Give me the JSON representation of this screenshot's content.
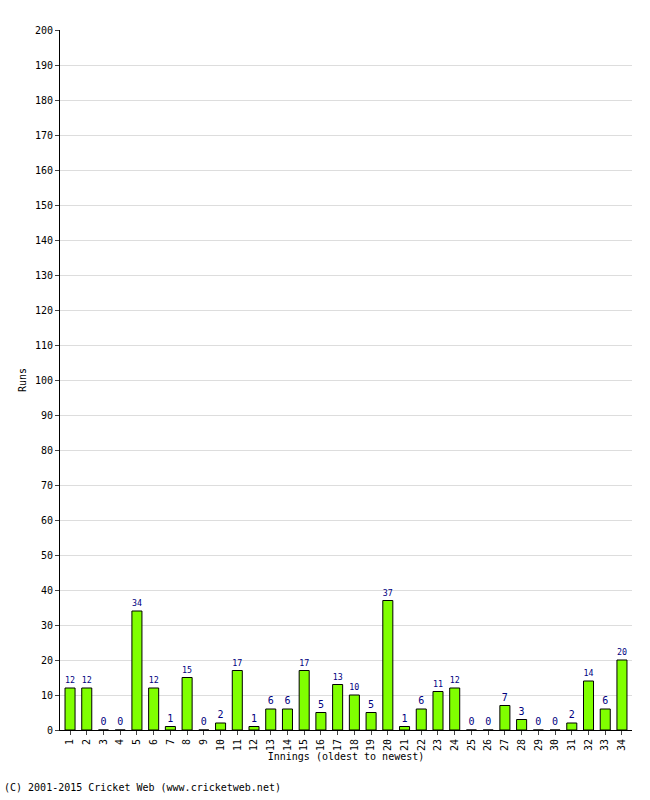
{
  "chart_data": {
    "type": "bar",
    "categories": [
      "1",
      "2",
      "3",
      "4",
      "5",
      "6",
      "7",
      "8",
      "9",
      "10",
      "11",
      "12",
      "13",
      "14",
      "15",
      "16",
      "17",
      "18",
      "19",
      "20",
      "21",
      "22",
      "23",
      "24",
      "25",
      "26",
      "27",
      "28",
      "29",
      "30",
      "31",
      "32",
      "33",
      "34"
    ],
    "values": [
      12,
      12,
      0,
      0,
      34,
      12,
      1,
      15,
      0,
      2,
      17,
      1,
      6,
      6,
      17,
      5,
      13,
      10,
      5,
      37,
      1,
      6,
      11,
      12,
      0,
      0,
      7,
      3,
      0,
      0,
      2,
      14,
      6,
      20
    ],
    "color": "#80ff00",
    "x_label": "Innings (oldest to newest)",
    "y_label": "Runs",
    "annotations": [
      "(C) 2001-2015 Cricket Web (www.cricketweb.net)"
    ],
    "ylim": [
      0,
      200
    ],
    "yticks": [
      0,
      10,
      20,
      30,
      40,
      50,
      60,
      70,
      80,
      90,
      100,
      110,
      120,
      130,
      140,
      150,
      160,
      170,
      180,
      190,
      200
    ],
    "grid": true,
    "data_labels": true
  }
}
